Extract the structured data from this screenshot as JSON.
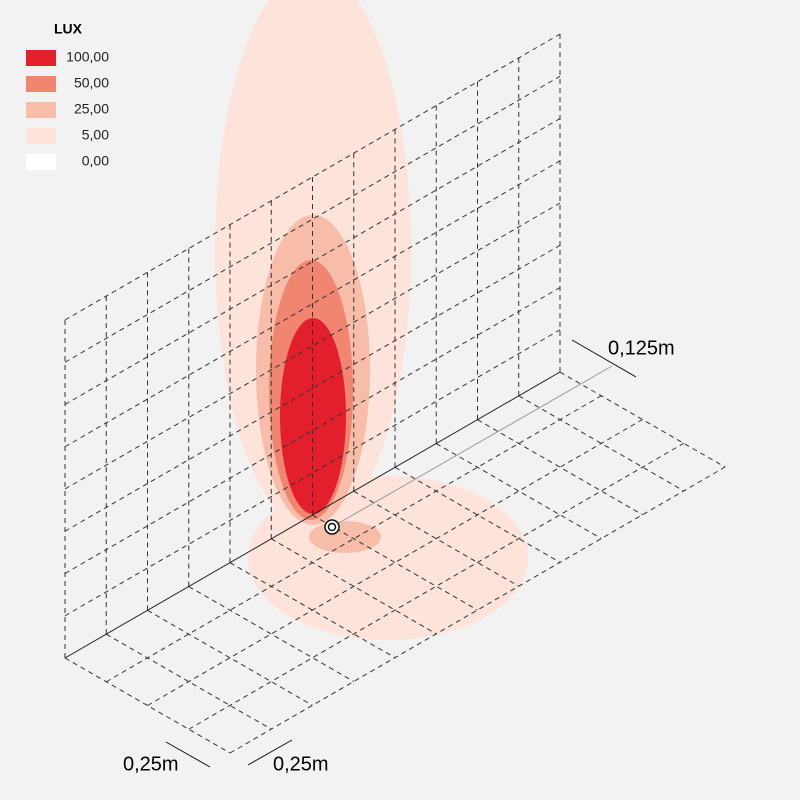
{
  "legend": {
    "title": "LUX",
    "entries": [
      {
        "label": "100,00",
        "color": "#e31e2d"
      },
      {
        "label": "50,00",
        "color": "#f08670"
      },
      {
        "label": "25,00",
        "color": "#f7bda9"
      },
      {
        "label": "5,00",
        "color": "#fde3da"
      },
      {
        "label": "0,00",
        "color": "#ffffff"
      }
    ]
  },
  "dimensions": {
    "offset": "0,125m",
    "cell_width": "0,25m",
    "cell_depth": "0,25m"
  }
}
